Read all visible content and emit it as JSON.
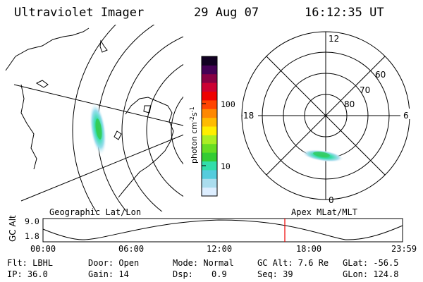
{
  "header": {
    "instrument": "Ultraviolet Imager",
    "date": "29 Aug 07",
    "time": "16:12:35 UT"
  },
  "geographic_panel": {
    "label": "Geographic Lat/Lon"
  },
  "colorbar": {
    "axis_label": "photon cm",
    "axis_label_sup1": "-2",
    "axis_label_mid": "s",
    "axis_label_sup2": "-1",
    "tick_100": "100",
    "tick_10": "10",
    "colors": [
      "#ddeeff",
      "#aaddee",
      "#55ccdd",
      "#33ddaa",
      "#33cc33",
      "#66dd22",
      "#aaee22",
      "#ffee00",
      "#ffbb00",
      "#ff8800",
      "#ff4400",
      "#ee0000",
      "#cc0033",
      "#880044",
      "#440055",
      "#110022"
    ]
  },
  "polar_panel": {
    "label": "Apex MLat/MLT",
    "mlt_top": "12",
    "mlt_bottom": "0",
    "mlt_left": "18",
    "mlt_right": "6",
    "lat_60": "60",
    "lat_70": "70",
    "lat_80": "80"
  },
  "altitude_plot": {
    "ylabel": "GC Alt",
    "ytick_high": "9.0",
    "ytick_low": "1.8",
    "xticks": [
      "00:00",
      "06:00",
      "12:00",
      "18:00",
      "23:59"
    ],
    "marker_color": "#ee0000"
  },
  "footer": {
    "flt": "Flt: LBHL",
    "ip": "IP: 36.0",
    "door": "Door: Open",
    "gain": "Gain: 14",
    "mode": "Mode: Normal",
    "dsp_label": "Dsp:",
    "dsp_value": "0.9",
    "gc_alt": "GC Alt: 7.6 Re",
    "seq": "Seq: 39",
    "glat": "GLat: -56.5",
    "glon": "GLon: 124.8"
  }
}
